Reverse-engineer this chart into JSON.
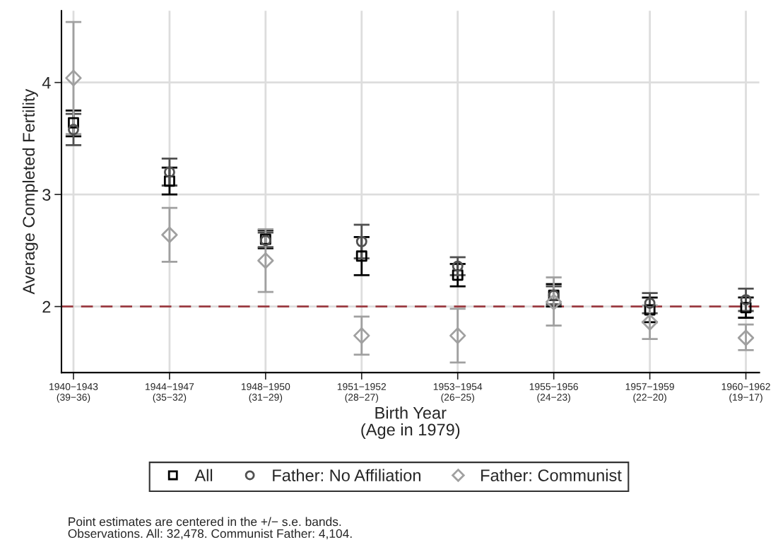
{
  "chart_data": {
    "type": "scatter",
    "categories": [
      "1940−1943\n(39−36)",
      "1944−1947\n(35−32)",
      "1948−1950\n(31−29)",
      "1951−1952\n(28−27)",
      "1953−1954\n(26−25)",
      "1955−1956\n(24−23)",
      "1957−1959\n(22−20)",
      "1960−1962\n(19−17)"
    ],
    "series": [
      {
        "name": "All",
        "color": "#000000",
        "marker": "square",
        "values": [
          3.64,
          3.12,
          2.6,
          2.45,
          2.28,
          2.1,
          1.97,
          1.99
        ],
        "errors": [
          [
            3.52,
            3.75
          ],
          [
            3.0,
            3.24
          ],
          [
            2.52,
            2.68
          ],
          [
            2.28,
            2.62
          ],
          [
            2.18,
            2.38
          ],
          [
            2.0,
            2.2
          ],
          [
            1.86,
            2.08
          ],
          [
            1.9,
            2.08
          ]
        ]
      },
      {
        "name": "Father: No Affiliation",
        "color": "#505050",
        "marker": "circle",
        "values": [
          3.58,
          3.2,
          2.59,
          2.58,
          2.36,
          2.1,
          2.03,
          2.06
        ],
        "errors": [
          [
            3.44,
            3.72
          ],
          [
            3.08,
            3.32
          ],
          [
            2.53,
            2.66
          ],
          [
            2.43,
            2.73
          ],
          [
            2.28,
            2.44
          ],
          [
            2.02,
            2.18
          ],
          [
            1.94,
            2.12
          ],
          [
            1.96,
            2.16
          ]
        ]
      },
      {
        "name": "Father: Communist",
        "color": "#a0a0a0",
        "marker": "diamond",
        "values": [
          4.04,
          2.64,
          2.41,
          1.74,
          1.74,
          2.04,
          1.86,
          1.72
        ],
        "errors": [
          [
            3.54,
            4.54
          ],
          [
            2.4,
            2.88
          ],
          [
            2.13,
            2.69
          ],
          [
            1.57,
            1.91
          ],
          [
            1.5,
            1.98
          ],
          [
            1.83,
            2.26
          ],
          [
            1.71,
            2.01
          ],
          [
            1.61,
            1.84
          ]
        ]
      }
    ],
    "xlabel": "Birth Year\n(Age in 1979)",
    "ylabel": "Average Completed Fertility",
    "ylim": [
      1.41,
      4.64
    ],
    "yticks": [
      2,
      3,
      4
    ],
    "ref_lines": [
      {
        "axis": "y",
        "value": 2,
        "color": "#9b3b41",
        "line_style": "dashed"
      }
    ],
    "grid": true,
    "legend": "bottom",
    "annotations": [
      "Point estimates are centered in the +/− s.e. bands.",
      "Observations. All: 32,478. Communist Father: 4,104."
    ]
  }
}
